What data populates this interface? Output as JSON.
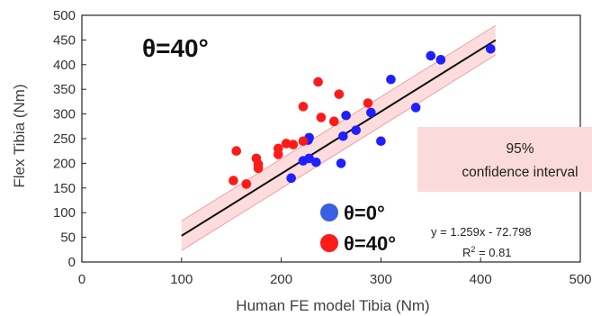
{
  "chart_data": {
    "type": "scatter",
    "title": "",
    "xlabel": "Human FE model Tibia (Nm)",
    "ylabel": "Flex Tibia (Nm)",
    "xlim": [
      0,
      500
    ],
    "ylim": [
      0,
      500
    ],
    "xticks": [
      "0",
      "100",
      "200",
      "300",
      "400",
      "500"
    ],
    "yticks": [
      "0",
      "50",
      "100",
      "150",
      "200",
      "250",
      "300",
      "350",
      "400",
      "450",
      "500"
    ],
    "grid": false,
    "legend_position": "bottom-center",
    "annotation": "θ=40°",
    "series": [
      {
        "name": "θ=0°",
        "color": "#1f1fff",
        "points": [
          [
            210,
            170
          ],
          [
            222,
            205
          ],
          [
            227,
            247
          ],
          [
            228,
            252
          ],
          [
            228,
            210
          ],
          [
            235,
            202
          ],
          [
            260,
            200
          ],
          [
            262,
            255
          ],
          [
            265,
            297
          ],
          [
            275,
            267
          ],
          [
            290,
            303
          ],
          [
            300,
            245
          ],
          [
            310,
            370
          ],
          [
            335,
            313
          ],
          [
            350,
            418
          ],
          [
            360,
            410
          ],
          [
            410,
            432
          ]
        ]
      },
      {
        "name": "θ=40°",
        "color": "#ff1a1a",
        "points": [
          [
            152,
            165
          ],
          [
            155,
            225
          ],
          [
            165,
            158
          ],
          [
            175,
            210
          ],
          [
            177,
            190
          ],
          [
            177,
            198
          ],
          [
            197,
            218
          ],
          [
            197,
            230
          ],
          [
            205,
            240
          ],
          [
            212,
            238
          ],
          [
            222,
            315
          ],
          [
            222,
            245
          ],
          [
            237,
            365
          ],
          [
            240,
            293
          ],
          [
            253,
            285
          ],
          [
            258,
            340
          ],
          [
            287,
            322
          ]
        ]
      }
    ],
    "fit": {
      "label": "y = 1.259x - 72.798",
      "r2_prefix": "R",
      "r2_sup": "2",
      "r2_suffix": " = 0.81",
      "slope": 1.259,
      "intercept": -72.798,
      "x_range": [
        100,
        415
      ],
      "ci_halfwidth": 30,
      "ci_label_line1": "95%",
      "ci_label_line2": "confidence interval",
      "ci_fill": "#fcdcdc",
      "ci_edge": "#f0a0a0"
    }
  }
}
